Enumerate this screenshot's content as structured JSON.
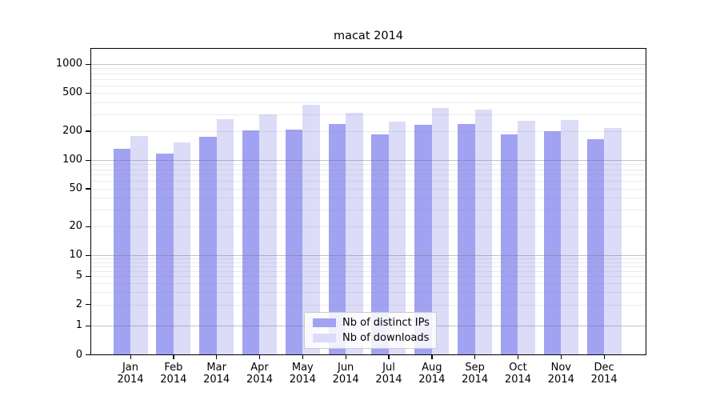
{
  "chart_data": {
    "type": "bar",
    "title": "macat 2014",
    "categories": [
      "Jan",
      "Feb",
      "Mar",
      "Apr",
      "May",
      "Jun",
      "Jul",
      "Aug",
      "Sep",
      "Oct",
      "Nov",
      "Dec"
    ],
    "category_year": "2014",
    "series": [
      {
        "name": "Nb of distinct IPs",
        "color": "#a2a2f2",
        "values": [
          131,
          117,
          176,
          207,
          209,
          241,
          186,
          235,
          238,
          186,
          203,
          167
        ]
      },
      {
        "name": "Nb of downloads",
        "color": "#dcdcf9",
        "values": [
          179,
          154,
          271,
          302,
          383,
          316,
          254,
          350,
          336,
          257,
          262,
          219
        ]
      }
    ],
    "yscale": "symlog",
    "y_tick_labels": [
      "1000",
      "500",
      "200",
      "100",
      "50",
      "20",
      "10",
      "5",
      "2",
      "1",
      "0"
    ],
    "y_tick_values": [
      1000,
      500,
      200,
      100,
      50,
      20,
      10,
      5,
      2,
      1,
      0
    ],
    "ylim": [
      0,
      1430
    ],
    "grid": "horizontal major+minor, drawn over bars",
    "legend_position": "lower center"
  },
  "colors": {
    "grid_major": "rgba(110,110,110,0.42)",
    "grid_minor": "rgba(130,130,130,0.16)",
    "spine": "#000000",
    "text": "#000000"
  }
}
